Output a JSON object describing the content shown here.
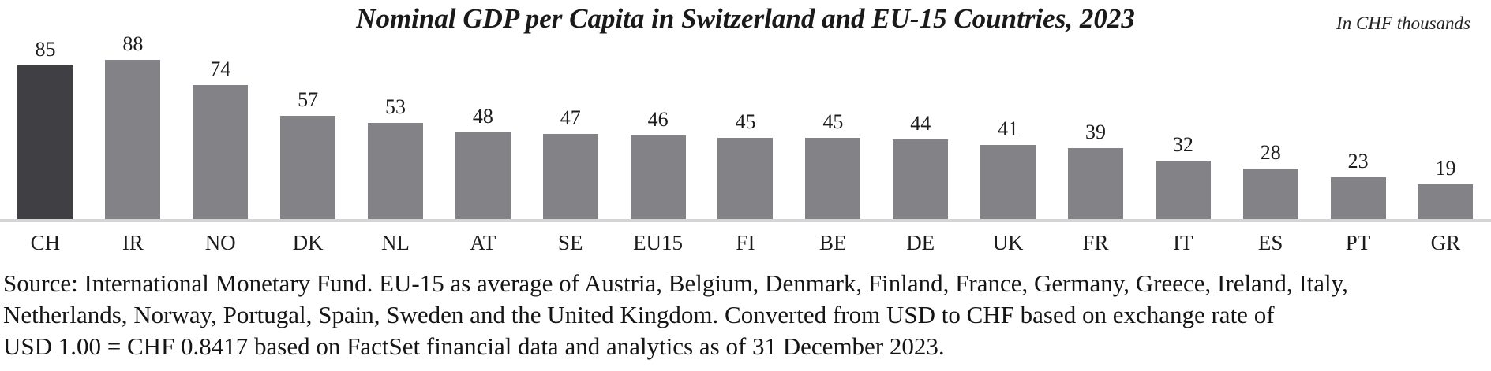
{
  "chart_data": {
    "type": "bar",
    "title": "Nominal GDP per Capita in Switzerland and EU-15 Countries, 2023",
    "unit_note": "In CHF thousands",
    "categories": [
      "CH",
      "IR",
      "NO",
      "DK",
      "NL",
      "AT",
      "SE",
      "EU15",
      "FI",
      "BE",
      "DE",
      "UK",
      "FR",
      "IT",
      "ES",
      "PT",
      "GR"
    ],
    "values": [
      85,
      88,
      74,
      57,
      53,
      48,
      47,
      46,
      45,
      45,
      44,
      41,
      39,
      32,
      28,
      23,
      19
    ],
    "highlight_category": "CH",
    "bar_color": "#838387",
    "highlight_color": "#404044",
    "axis_line_color": "#d5d5d7",
    "value_labels": true,
    "grid": false,
    "legend": "none",
    "ylim": [
      0,
      92
    ],
    "xlabel": "",
    "ylabel": ""
  },
  "footer": {
    "source_lines": [
      "Source: International Monetary Fund. EU-15 as average of Austria, Belgium, Denmark, Finland, France, Germany, Greece, Ireland, Italy,",
      "Netherlands, Norway, Portugal, Spain, Sweden and the United Kingdom. Converted from USD to CHF based on exchange rate of",
      "USD 1.00 = CHF 0.8417 based on FactSet financial data and analytics as of 31 December 2023."
    ]
  }
}
